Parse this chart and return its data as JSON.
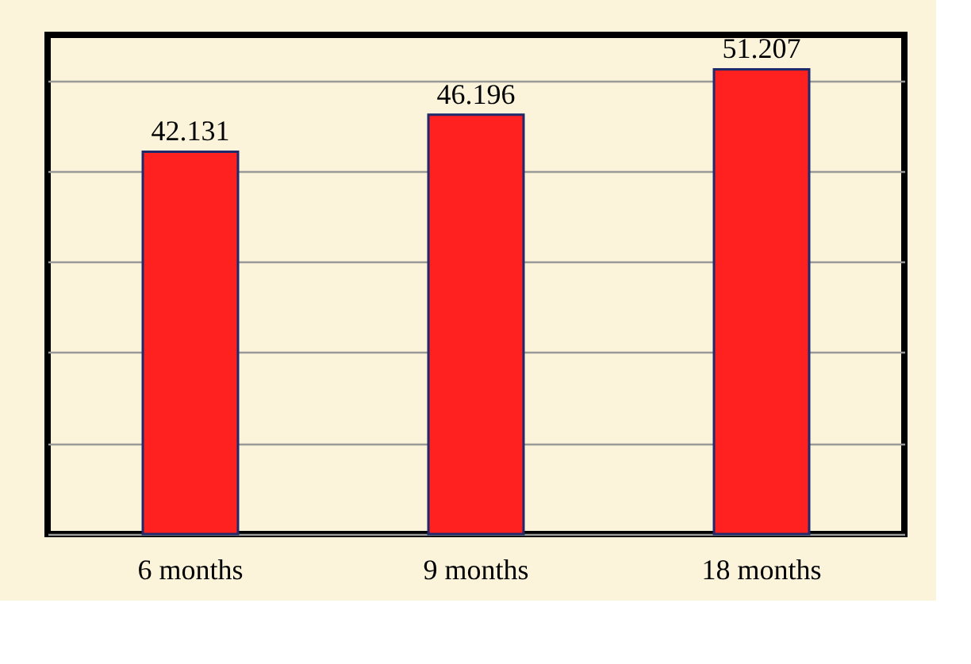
{
  "chart_data": {
    "type": "bar",
    "categories": [
      "6 months",
      "9 months",
      "18 months"
    ],
    "values": [
      42.131,
      46.196,
      51.207
    ],
    "color": "#ff2020",
    "data_labels": true,
    "grid": "y",
    "tick_labels": "x"
  }
}
